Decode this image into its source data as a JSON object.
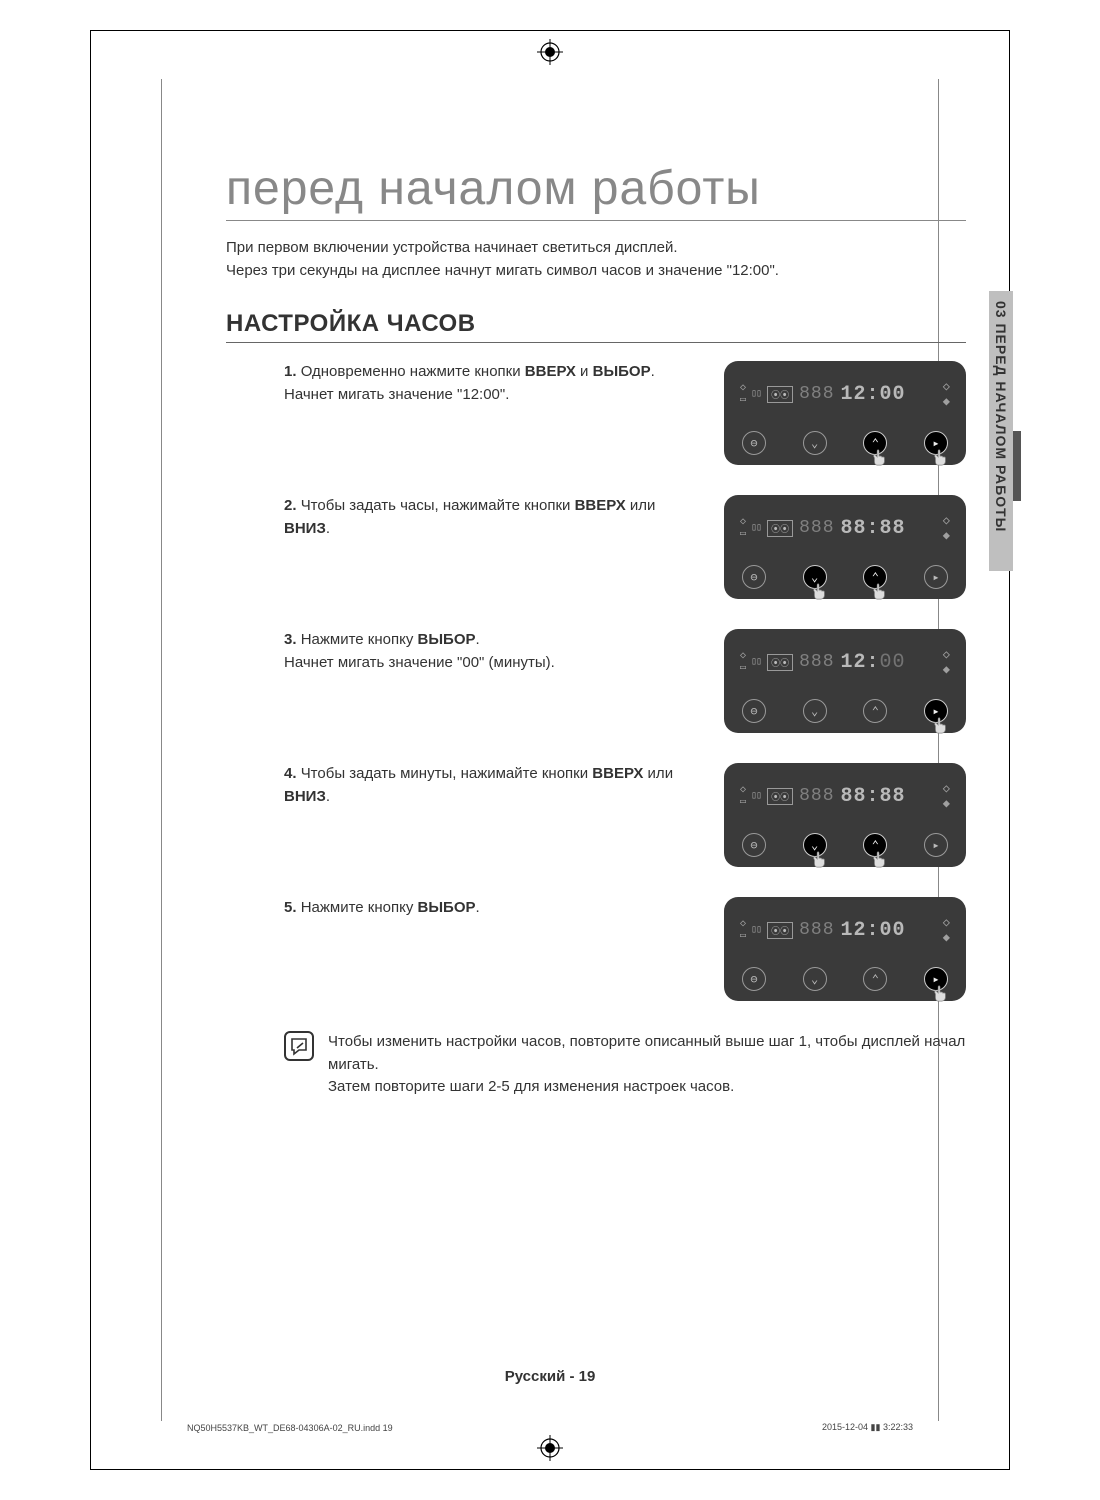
{
  "title": "перед началом работы",
  "intro_line1": "При первом включении устройства начинает светиться дисплей.",
  "intro_line2": "Через три секунды на дисплее начнут мигать символ часов и значение \"12:00\".",
  "section_heading": "НАСТРОЙКА ЧАСОВ",
  "side_label": "03  ПЕРЕД НАЧАЛОМ РАБОТЫ",
  "steps": [
    {
      "num": "1.",
      "text_parts": [
        "Одновременно нажмите кнопки ",
        "ВВЕРХ",
        " и ",
        "ВЫБОР",
        "."
      ],
      "sub": "Начнет мигать значение \"12:00\".",
      "panel": {
        "seg": "888",
        "time_bright": "12:00",
        "time_dim": "",
        "active_buttons": [
          2,
          3
        ],
        "hands": [
          2,
          3
        ]
      }
    },
    {
      "num": "2.",
      "text_parts": [
        "Чтобы задать часы, нажимайте кнопки ",
        "ВВЕРХ",
        " или ",
        "ВНИЗ",
        "."
      ],
      "sub": "",
      "panel": {
        "seg": "888",
        "time_bright": "",
        "time_dim": "88:88",
        "active_buttons": [
          1,
          2
        ],
        "hands": [
          1,
          2
        ]
      }
    },
    {
      "num": "3.",
      "text_parts": [
        "Нажмите кнопку ",
        "ВЫБОР",
        "."
      ],
      "sub": "Начнет мигать значение \"00\" (минуты).",
      "panel": {
        "seg": "888",
        "time_bright": "12:",
        "time_dim": "00",
        "active_buttons": [
          3
        ],
        "hands": [
          3
        ]
      }
    },
    {
      "num": "4.",
      "text_parts": [
        "Чтобы задать минуты, нажимайте кнопки ",
        "ВВЕРХ",
        " или ",
        "ВНИЗ",
        "."
      ],
      "sub": "",
      "panel": {
        "seg": "888",
        "time_bright": "",
        "time_dim": "88:88",
        "active_buttons": [
          1,
          2
        ],
        "hands": [
          1,
          2
        ]
      }
    },
    {
      "num": "5.",
      "text_parts": [
        "Нажмите кнопку ",
        "ВЫБОР",
        "."
      ],
      "sub": "",
      "panel": {
        "seg": "888",
        "time_bright": "12:00",
        "time_dim": "",
        "active_buttons": [
          3
        ],
        "hands": [
          3
        ]
      }
    }
  ],
  "note_line1": "Чтобы изменить настройки часов, повторите описанный выше шаг 1, чтобы дисплей начал мигать.",
  "note_line2": "Затем повторите шаги 2-5 для изменения настроек часов.",
  "footer_page": "Русский - 19",
  "footer_left": "NQ50H5537KB_WT_DE68-04306A-02_RU.indd   19",
  "footer_right": "2015-12-04   ▮▮ 3:22:33",
  "button_glyphs": [
    "⊖",
    "⌄",
    "⌃",
    "▸"
  ],
  "colors": {
    "panel_bg": "#3a3a3a",
    "panel_text": "#b9b9b9",
    "title_color": "#888888",
    "sidebar_bg": "#bfbfbf"
  }
}
